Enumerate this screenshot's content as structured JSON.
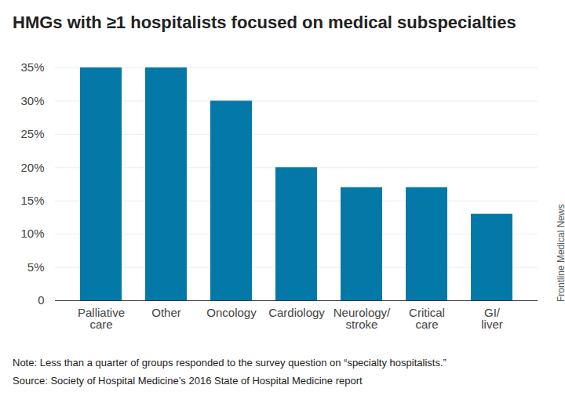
{
  "chart_data": {
    "type": "bar",
    "title": "HMGs with ≥1 hospitalists focused on medical subspecialties",
    "categories": [
      "Palliative care",
      "Other",
      "Oncology",
      "Cardiology",
      "Neurology/stroke",
      "Critical care",
      "GI/liver"
    ],
    "values": [
      35,
      35,
      30,
      20,
      17,
      17,
      13
    ],
    "color": "#0479a8",
    "ylim": [
      0,
      35
    ],
    "yticks": [
      0,
      {
        "value": 5,
        "label": "5%"
      },
      {
        "value": 10,
        "label": "10%"
      },
      {
        "value": 15,
        "label": "15%"
      },
      {
        "value": 20,
        "label": "20%"
      },
      {
        "value": 25,
        "label": "25%"
      },
      {
        "value": 30,
        "label": "30%"
      },
      {
        "value": 35,
        "label": "35%"
      }
    ],
    "grid": true,
    "annotations": [
      "Note: Less than a quarter of groups responded to the survey question on “specialty hospitalists.”",
      "Source: Society of Hospital Medicine’s 2016 State of Hospital Medicine report",
      "Frontline Medical News"
    ]
  }
}
